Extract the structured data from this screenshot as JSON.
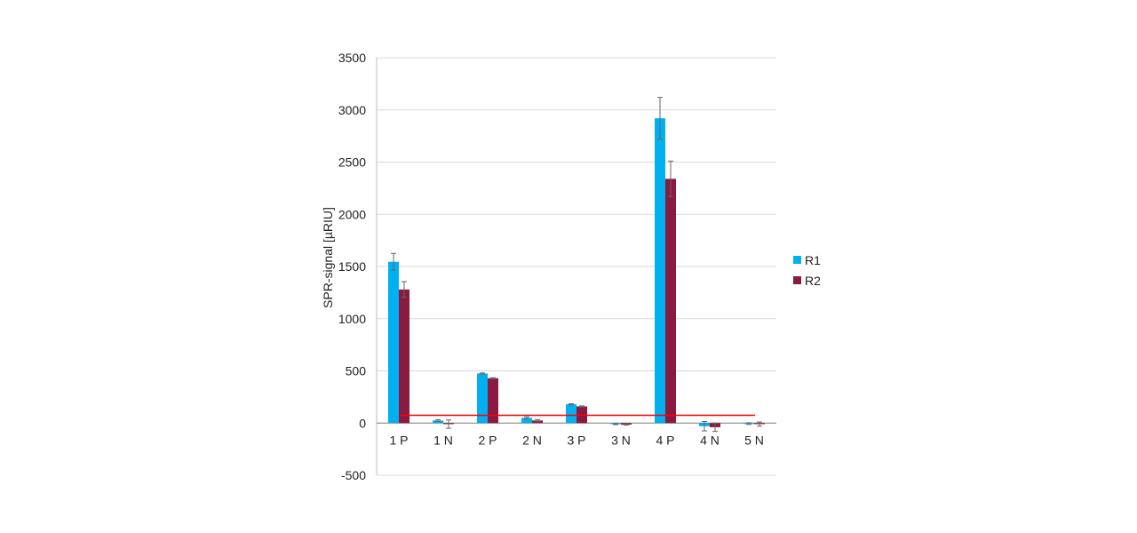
{
  "chart_data": {
    "type": "bar",
    "categories": [
      "1 P",
      "1 N",
      "2 P",
      "2 N",
      "3 P",
      "3 N",
      "4 P",
      "4 N",
      "5 N"
    ],
    "series": [
      {
        "name": "R1",
        "color": "#00b0f0",
        "values": [
          1545,
          25,
          475,
          50,
          180,
          -10,
          2920,
          -30,
          -5
        ],
        "errors": [
          80,
          8,
          5,
          10,
          5,
          5,
          200,
          45,
          8
        ]
      },
      {
        "name": "R2",
        "color": "#8b1a41",
        "values": [
          1280,
          -10,
          430,
          25,
          160,
          -15,
          2340,
          -40,
          -10
        ],
        "errors": [
          75,
          40,
          5,
          8,
          5,
          5,
          170,
          40,
          20
        ]
      }
    ],
    "threshold": {
      "value": 75,
      "color": "#ff0000"
    },
    "ylabel": "SPR-signal [µRIU]",
    "xlabel": "",
    "title": "",
    "ylim": [
      -500,
      3500
    ],
    "yticks": [
      -500,
      0,
      500,
      1000,
      1500,
      2000,
      2500,
      3000,
      3500
    ],
    "grid": true,
    "legend_position": "right"
  },
  "legend": {
    "r1": "R1",
    "r2": "R2"
  }
}
